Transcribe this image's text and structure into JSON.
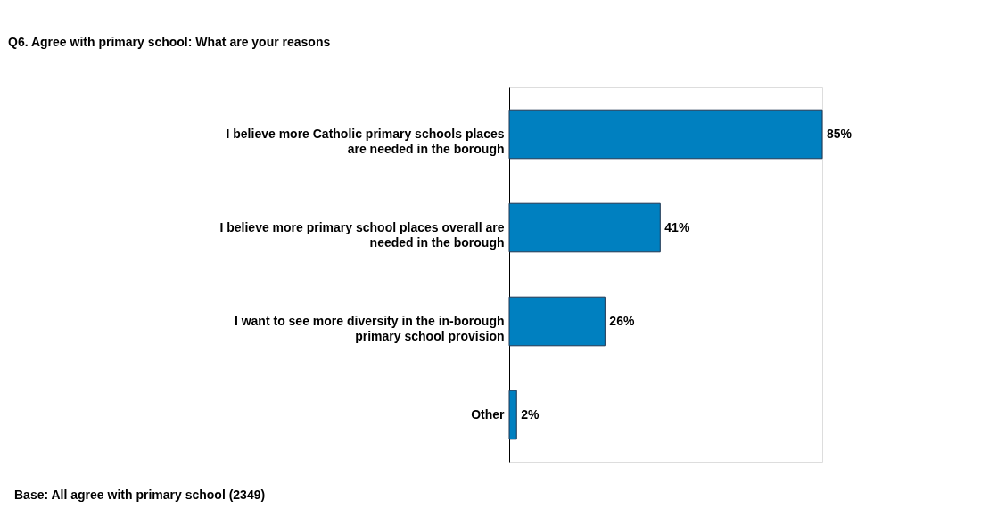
{
  "chart_data": {
    "type": "bar",
    "orientation": "horizontal",
    "title": "Q6. Agree with primary school: What are your reasons",
    "categories": [
      "I believe more Catholic primary schools places\nare needed in the borough",
      "I believe more primary school places overall  are\nneeded in the borough",
      "I want to see more diversity in the in-borough\nprimary school provision",
      "Other"
    ],
    "values": [
      85,
      41,
      26,
      2
    ],
    "value_labels": [
      "85%",
      "41%",
      "26%",
      "2%"
    ],
    "color": "#0080c0",
    "annotations": [
      "Base: All agree with primary school (2349)"
    ]
  }
}
